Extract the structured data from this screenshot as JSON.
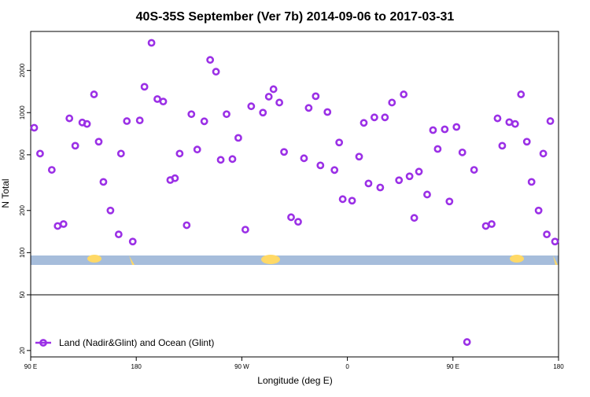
{
  "chart_data": {
    "type": "scatter",
    "title": "40S-35S September (Ver 7b)   2014-09-06 to 2017-03-31",
    "xlabel": "Longitude (deg E)",
    "ylabel": "N Total",
    "log_y": true,
    "color": "#9b30e6",
    "legend_loc": "lower left",
    "xlim": [
      90,
      540
    ],
    "xticks": [
      {
        "value": 90,
        "label": "90 E"
      },
      180,
      {
        "value": 270,
        "label": "90 W"
      },
      {
        "value": 360,
        "label": "0"
      },
      {
        "value": 450,
        "label": "90 E"
      },
      {
        "value": 540,
        "label": "180"
      }
    ],
    "ylim": [
      18,
      3800
    ],
    "yticks": [
      20,
      50,
      100,
      200,
      500,
      1000,
      2000
    ],
    "series": [
      {
        "name": "Land (Nadir&Glint) and Ocean (Glint)",
        "color": "#9b30e6",
        "x": [
          93,
          98,
          108,
          113,
          118,
          123,
          128,
          134,
          138,
          144,
          148,
          152,
          158,
          165,
          167,
          172,
          177,
          183,
          187,
          193,
          198,
          203,
          209,
          213,
          217,
          223,
          227,
          232,
          238,
          243,
          248,
          252,
          257,
          262,
          267,
          273,
          278,
          288,
          293,
          297,
          302,
          306,
          312,
          318,
          323,
          327,
          333,
          337,
          343,
          349,
          353,
          356,
          364,
          370,
          374,
          378,
          383,
          388,
          392,
          398,
          404,
          408,
          413,
          417,
          421,
          428,
          433,
          437,
          443,
          447,
          453,
          458,
          462,
          468,
          478,
          483,
          488,
          492,
          498,
          503,
          508,
          513,
          517,
          523,
          530,
          527,
          533,
          537
        ],
        "values": [
          780,
          510,
          390,
          155,
          160,
          910,
          580,
          850,
          830,
          1350,
          620,
          320,
          200,
          135,
          510,
          870,
          120,
          880,
          1530,
          3150,
          1250,
          1200,
          330,
          340,
          510,
          157,
          975,
          545,
          867,
          2380,
          1960,
          460,
          975,
          466,
          660,
          146,
          1110,
          1000,
          1300,
          1470,
          1180,
          524,
          179,
          166,
          472,
          1080,
          1310,
          420,
          1010,
          389,
          612,
          241,
          235,
          485,
          845,
          312,
          925,
          292,
          925,
          1180,
          329,
          1350,
          351,
          177,
          379,
          260,
          750,
          550,
          760,
          232,
          790,
          520,
          23,
          390,
          155,
          160,
          910,
          580,
          855,
          830,
          1350,
          620,
          320,
          200,
          135,
          510,
          870,
          120
        ]
      }
    ]
  }
}
